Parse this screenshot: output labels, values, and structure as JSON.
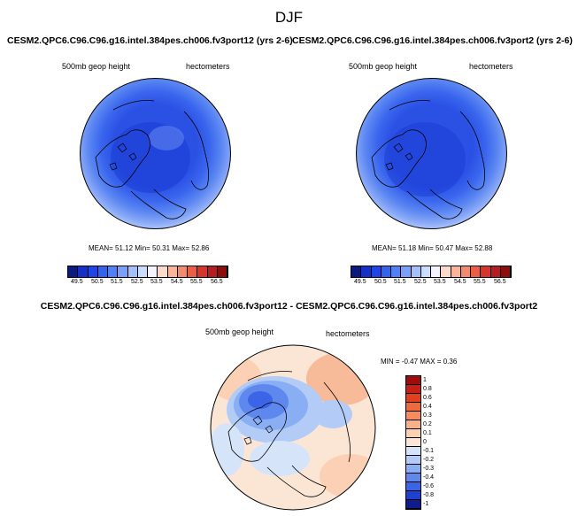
{
  "season_title": "DJF",
  "left_panel": {
    "case_title": "CESM2.QPC6.C96.C96.g16.intel.384pes.ch006.fv3port12 (yrs 2-6)",
    "variable": "500mb geop height",
    "units": "hectometers",
    "stats": "MEAN=  51.12  Min=  50.31  Max=  52.86"
  },
  "right_panel": {
    "case_title": "CESM2.QPC6.C96.C96.g16.intel.384pes.ch006.fv3port2 (yrs 2-6)",
    "variable": "500mb geop height",
    "units": "hectometers",
    "stats": "MEAN=  51.18  Min=  50.47  Max=  52.88"
  },
  "abs_colorbar": {
    "labels": [
      "49.5",
      "50.5",
      "51.5",
      "52.5",
      "53.5",
      "54.5",
      "55.5",
      "56.5"
    ],
    "colors": [
      "#0a1a80",
      "#1430c8",
      "#1e46e6",
      "#3264f0",
      "#5082f5",
      "#7aa0f8",
      "#a4c0fb",
      "#cbdcfc",
      "#f4f4ff",
      "#fcd9c8",
      "#f9b49a",
      "#f48a6c",
      "#e85f44",
      "#d4362a",
      "#b41e1e",
      "#8a0f0f"
    ]
  },
  "diff_panel": {
    "title": "CESM2.QPC6.C96.C96.g16.intel.384pes.ch006.fv3port12 - CESM2.QPC6.C96.C96.g16.intel.384pes.ch006.fv3port2",
    "variable": "500mb geop height",
    "units": "hectometers",
    "stats": "MIN = -0.47 MAX =  0.36"
  },
  "diff_colorbar": {
    "labels": [
      "1",
      "0.8",
      "0.6",
      "0.4",
      "0.3",
      "0.2",
      "0.1",
      "0",
      "-0.1",
      "-0.2",
      "-0.3",
      "-0.4",
      "-0.6",
      "-0.8",
      "-1"
    ],
    "colors": [
      "#9e0d0d",
      "#c51f16",
      "#e0401e",
      "#ee6a3c",
      "#f48c5e",
      "#f8b08a",
      "#fbd0b4",
      "#fbe6d6",
      "#d6e4fa",
      "#b2ccf7",
      "#8aaef3",
      "#5f88ee",
      "#3c64e6",
      "#2040d2",
      "#101c8c"
    ]
  }
}
